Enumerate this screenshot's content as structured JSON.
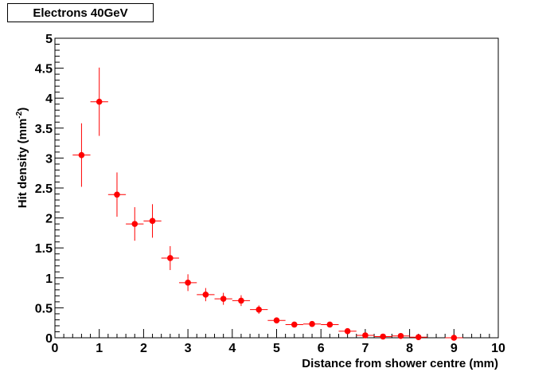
{
  "chart_data": {
    "type": "scatter",
    "title": "Electrons 40GeV",
    "xlabel": "Distance from shower centre (mm)",
    "ylabel_main": "Hit density (mm",
    "ylabel_sup": "-2",
    "ylabel_close": ")",
    "xlim": [
      0,
      10
    ],
    "ylim": [
      0,
      5
    ],
    "x_ticks": [
      0,
      1,
      2,
      3,
      4,
      5,
      6,
      7,
      8,
      9,
      10
    ],
    "y_ticks": [
      0,
      0.5,
      1,
      1.5,
      2,
      2.5,
      3,
      3.5,
      4,
      4.5,
      5
    ],
    "marker_color": "#ff0000",
    "grid": false,
    "points": [
      {
        "x": 0.6,
        "y": 3.05,
        "xerr": 0.2,
        "yerr_low": 0.53,
        "yerr_high": 0.53
      },
      {
        "x": 1.0,
        "y": 3.94,
        "xerr": 0.2,
        "yerr_low": 0.57,
        "yerr_high": 0.57
      },
      {
        "x": 1.4,
        "y": 2.39,
        "xerr": 0.2,
        "yerr_low": 0.37,
        "yerr_high": 0.37
      },
      {
        "x": 1.8,
        "y": 1.9,
        "xerr": 0.2,
        "yerr_low": 0.28,
        "yerr_high": 0.28
      },
      {
        "x": 2.2,
        "y": 1.95,
        "xerr": 0.2,
        "yerr_low": 0.28,
        "yerr_high": 0.28
      },
      {
        "x": 2.6,
        "y": 1.33,
        "xerr": 0.2,
        "yerr_low": 0.2,
        "yerr_high": 0.2
      },
      {
        "x": 3.0,
        "y": 0.92,
        "xerr": 0.2,
        "yerr_low": 0.14,
        "yerr_high": 0.14
      },
      {
        "x": 3.4,
        "y": 0.72,
        "xerr": 0.2,
        "yerr_low": 0.11,
        "yerr_high": 0.11
      },
      {
        "x": 3.8,
        "y": 0.65,
        "xerr": 0.2,
        "yerr_low": 0.1,
        "yerr_high": 0.1
      },
      {
        "x": 4.2,
        "y": 0.62,
        "xerr": 0.2,
        "yerr_low": 0.09,
        "yerr_high": 0.09
      },
      {
        "x": 4.6,
        "y": 0.47,
        "xerr": 0.2,
        "yerr_low": 0.07,
        "yerr_high": 0.07
      },
      {
        "x": 5.0,
        "y": 0.29,
        "xerr": 0.2,
        "yerr_low": 0.04,
        "yerr_high": 0.04
      },
      {
        "x": 5.4,
        "y": 0.22,
        "xerr": 0.2,
        "yerr_low": 0.03,
        "yerr_high": 0.03
      },
      {
        "x": 5.8,
        "y": 0.23,
        "xerr": 0.2,
        "yerr_low": 0.03,
        "yerr_high": 0.03
      },
      {
        "x": 6.2,
        "y": 0.22,
        "xerr": 0.2,
        "yerr_low": 0.03,
        "yerr_high": 0.03
      },
      {
        "x": 6.6,
        "y": 0.11,
        "xerr": 0.2,
        "yerr_low": 0.02,
        "yerr_high": 0.02
      },
      {
        "x": 7.0,
        "y": 0.04,
        "xerr": 0.2,
        "yerr_low": 0.01,
        "yerr_high": 0.01
      },
      {
        "x": 7.4,
        "y": 0.02,
        "xerr": 0.2,
        "yerr_low": 0.01,
        "yerr_high": 0.01
      },
      {
        "x": 7.8,
        "y": 0.03,
        "xerr": 0.2,
        "yerr_low": 0.01,
        "yerr_high": 0.01
      },
      {
        "x": 8.2,
        "y": 0.01,
        "xerr": 0.2,
        "yerr_low": 0.01,
        "yerr_high": 0.01
      },
      {
        "x": 9.0,
        "y": 0.0,
        "xerr": 0.2,
        "yerr_low": 0.0,
        "yerr_high": 0.04
      }
    ]
  }
}
